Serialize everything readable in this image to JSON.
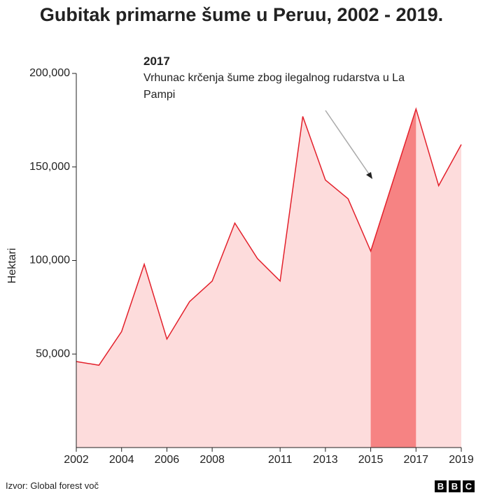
{
  "chart_data": {
    "type": "area",
    "title": "Gubitak primarne šume u Peruu, 2002 - 2019.",
    "y_label": "Hektari",
    "x": [
      2002,
      2003,
      2004,
      2005,
      2006,
      2007,
      2008,
      2009,
      2010,
      2011,
      2012,
      2013,
      2014,
      2015,
      2016,
      2017,
      2018,
      2019
    ],
    "values": [
      46000,
      44000,
      62000,
      98000,
      58000,
      78000,
      89000,
      120000,
      101000,
      89000,
      177000,
      143000,
      133000,
      105000,
      143000,
      181000,
      140000,
      162000
    ],
    "xlim": [
      2002,
      2019
    ],
    "xticks": [
      2002,
      2004,
      2006,
      2008,
      2011,
      2013,
      2015,
      2017,
      2019
    ],
    "ylim": [
      0,
      200000
    ],
    "yticks": [
      {
        "value": 50000,
        "label": "50,000"
      },
      {
        "value": 100000,
        "label": "100,000"
      },
      {
        "value": 150000,
        "label": "150,000"
      },
      {
        "value": 200000,
        "label": "200,000"
      }
    ],
    "color": "#e3202b",
    "fill": "#fddcdc",
    "highlight": [
      2015,
      2017
    ],
    "highlight_color": "#f68383",
    "annotation": {
      "title": "2017",
      "text": "Vrhunac krčenja šume zbog ilegalnog rudarstva u La Pampi"
    },
    "source": "Izvor: Global forest voč",
    "logo": [
      "B",
      "B",
      "C"
    ]
  }
}
